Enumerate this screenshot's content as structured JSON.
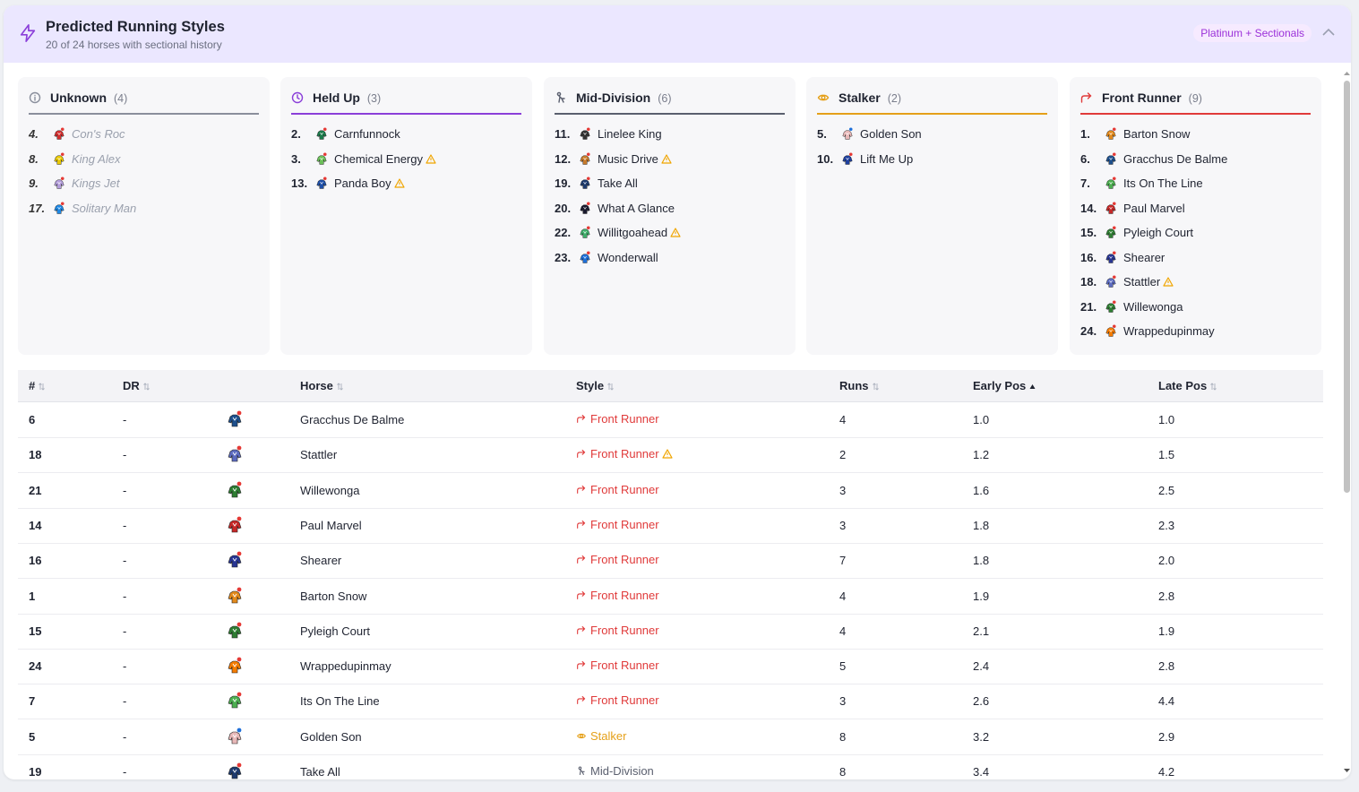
{
  "header": {
    "title": "Predicted Running Styles",
    "subtitle": "20 of 24 horses with sectional history",
    "badge": "Platinum + Sectionals"
  },
  "colors": {
    "Unknown": "#8a8f9c",
    "Held Up": "#8b3fd9",
    "Mid-Division": "#5a5f6e",
    "Stalker": "#e5a019",
    "Front Runner": "#e03a3a"
  },
  "cards": [
    {
      "key": "unknown",
      "label": "Unknown",
      "count": "(4)",
      "color": "#8a8f9c",
      "icon": "info-icon",
      "horses": [
        {
          "no": "4.",
          "name": "Con's Roc",
          "silk": "#d32f2f",
          "warn": false
        },
        {
          "no": "8.",
          "name": "King Alex",
          "silk": "#e8c800",
          "warn": false
        },
        {
          "no": "9.",
          "name": "Kings Jet",
          "silk": "#b39ddb",
          "warn": false
        },
        {
          "no": "17.",
          "name": "Solitary Man",
          "silk": "#1e88e5",
          "warn": false
        }
      ]
    },
    {
      "key": "heldup",
      "label": "Held Up",
      "count": "(3)",
      "color": "#8b3fd9",
      "icon": "clock-icon",
      "horses": [
        {
          "no": "2.",
          "name": "Carnfunnock",
          "silk": "#1b7a4b",
          "warn": false
        },
        {
          "no": "3.",
          "name": "Chemical Energy",
          "silk": "#6bbf59",
          "warn": true
        },
        {
          "no": "13.",
          "name": "Panda Boy",
          "silk": "#1e4fa8",
          "warn": true
        }
      ]
    },
    {
      "key": "middiv",
      "label": "Mid-Division",
      "count": "(6)",
      "color": "#5a5f6e",
      "icon": "walker-icon",
      "horses": [
        {
          "no": "11.",
          "name": "Linelee King",
          "silk": "#333333",
          "warn": false
        },
        {
          "no": "12.",
          "name": "Music Drive",
          "silk": "#c77a2a",
          "warn": true
        },
        {
          "no": "19.",
          "name": "Take All",
          "silk": "#1d3a6e",
          "warn": false
        },
        {
          "no": "20.",
          "name": "What A Glance",
          "silk": "#1a1a2e",
          "warn": false
        },
        {
          "no": "22.",
          "name": "Willitgoahead",
          "silk": "#3fae6a",
          "warn": true
        },
        {
          "no": "23.",
          "name": "Wonderwall",
          "silk": "#1e6fd9",
          "warn": false
        }
      ]
    },
    {
      "key": "stalker",
      "label": "Stalker",
      "count": "(2)",
      "color": "#e5a019",
      "icon": "eye-icon",
      "horses": [
        {
          "no": "5.",
          "name": "Golden Son",
          "silk": "#e8b8b8",
          "warn": false
        },
        {
          "no": "10.",
          "name": "Lift Me Up",
          "silk": "#1e3f9e",
          "warn": false
        }
      ]
    },
    {
      "key": "front",
      "label": "Front Runner",
      "count": "(9)",
      "color": "#e03a3a",
      "icon": "trend-icon",
      "horses": [
        {
          "no": "1.",
          "name": "Barton Snow",
          "silk": "#e38a1c",
          "warn": false
        },
        {
          "no": "6.",
          "name": "Gracchus De Balme",
          "silk": "#1d4f8c",
          "warn": false
        },
        {
          "no": "7.",
          "name": "Its On The Line",
          "silk": "#4caf50",
          "warn": false
        },
        {
          "no": "14.",
          "name": "Paul Marvel",
          "silk": "#c62828",
          "warn": false
        },
        {
          "no": "15.",
          "name": "Pyleigh Court",
          "silk": "#2e7d32",
          "warn": false
        },
        {
          "no": "16.",
          "name": "Shearer",
          "silk": "#283593",
          "warn": false
        },
        {
          "no": "18.",
          "name": "Stattler",
          "silk": "#5c6bc0",
          "warn": true
        },
        {
          "no": "21.",
          "name": "Willewonga",
          "silk": "#2e7d32",
          "warn": false
        },
        {
          "no": "24.",
          "name": "Wrappedupinmay",
          "silk": "#f57c00",
          "warn": false
        }
      ]
    }
  ],
  "table": {
    "columns": [
      {
        "label": "#",
        "sort": "none"
      },
      {
        "label": "DR",
        "sort": "none"
      },
      {
        "label": "Horse",
        "sort": "none"
      },
      {
        "label": "Style",
        "sort": "none"
      },
      {
        "label": "Runs",
        "sort": "none"
      },
      {
        "label": "Early Pos",
        "sort": "asc"
      },
      {
        "label": "Late Pos",
        "sort": "none"
      }
    ],
    "rows": [
      {
        "no": "6",
        "dr": "-",
        "horse": "Gracchus De Balme",
        "silk": "#1d4f8c",
        "style": "Front Runner",
        "warn": false,
        "runs": "4",
        "early": "1.0",
        "late": "1.0"
      },
      {
        "no": "18",
        "dr": "-",
        "horse": "Stattler",
        "silk": "#5c6bc0",
        "style": "Front Runner",
        "warn": true,
        "runs": "2",
        "early": "1.2",
        "late": "1.5"
      },
      {
        "no": "21",
        "dr": "-",
        "horse": "Willewonga",
        "silk": "#2e7d32",
        "style": "Front Runner",
        "warn": false,
        "runs": "3",
        "early": "1.6",
        "late": "2.5"
      },
      {
        "no": "14",
        "dr": "-",
        "horse": "Paul Marvel",
        "silk": "#c62828",
        "style": "Front Runner",
        "warn": false,
        "runs": "3",
        "early": "1.8",
        "late": "2.3"
      },
      {
        "no": "16",
        "dr": "-",
        "horse": "Shearer",
        "silk": "#283593",
        "style": "Front Runner",
        "warn": false,
        "runs": "7",
        "early": "1.8",
        "late": "2.0"
      },
      {
        "no": "1",
        "dr": "-",
        "horse": "Barton Snow",
        "silk": "#e38a1c",
        "style": "Front Runner",
        "warn": false,
        "runs": "4",
        "early": "1.9",
        "late": "2.8"
      },
      {
        "no": "15",
        "dr": "-",
        "horse": "Pyleigh Court",
        "silk": "#2e7d32",
        "style": "Front Runner",
        "warn": false,
        "runs": "4",
        "early": "2.1",
        "late": "1.9"
      },
      {
        "no": "24",
        "dr": "-",
        "horse": "Wrappedupinmay",
        "silk": "#f57c00",
        "style": "Front Runner",
        "warn": false,
        "runs": "5",
        "early": "2.4",
        "late": "2.8"
      },
      {
        "no": "7",
        "dr": "-",
        "horse": "Its On The Line",
        "silk": "#4caf50",
        "style": "Front Runner",
        "warn": false,
        "runs": "3",
        "early": "2.6",
        "late": "4.4"
      },
      {
        "no": "5",
        "dr": "-",
        "horse": "Golden Son",
        "silk": "#e8b8b8",
        "style": "Stalker",
        "warn": false,
        "runs": "8",
        "early": "3.2",
        "late": "2.9"
      },
      {
        "no": "19",
        "dr": "-",
        "horse": "Take All",
        "silk": "#1d3a6e",
        "style": "Mid-Division",
        "warn": false,
        "runs": "8",
        "early": "3.4",
        "late": "4.2"
      }
    ]
  }
}
